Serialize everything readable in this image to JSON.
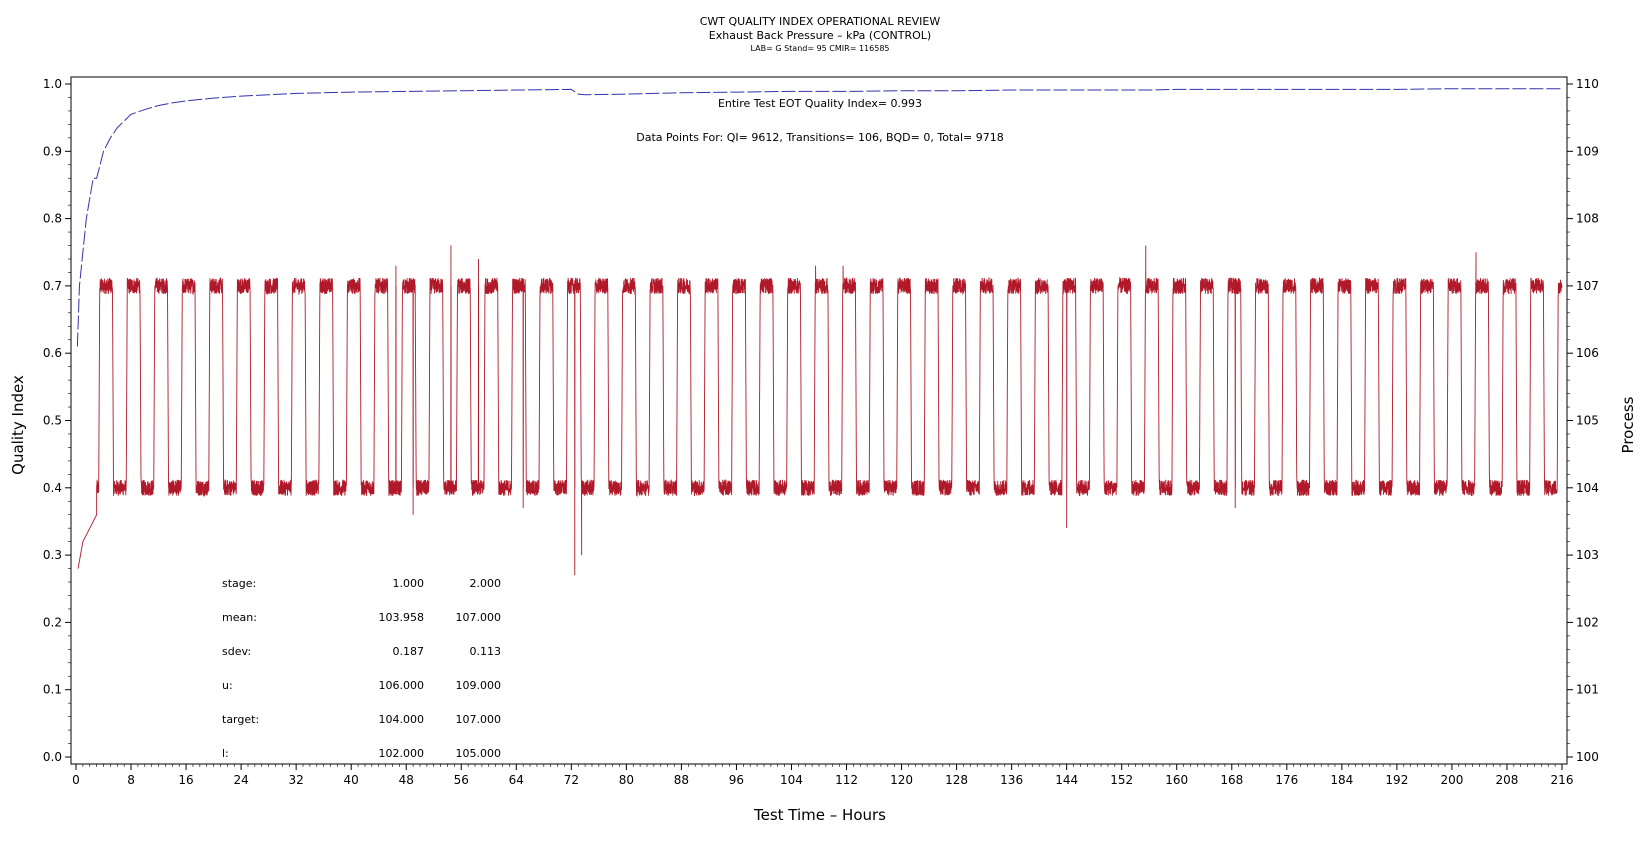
{
  "chart_data": {
    "type": "line",
    "title": "CWT QUALITY INDEX OPERATIONAL REVIEW",
    "subtitle": "Exhaust Back Pressure – kPa (CONTROL)",
    "subtitle2": "LAB= G Stand= 95 CMIR= 116585",
    "xlabel": "Test Time – Hours",
    "ylabel_left": "Quality Index",
    "ylabel_right": "Process",
    "xlim": [
      0,
      216
    ],
    "ylim_left": [
      0.0,
      1.0
    ],
    "ylim_right": [
      100,
      110
    ],
    "x_ticks": [
      "0",
      "8",
      "16",
      "24",
      "32",
      "40",
      "48",
      "56",
      "64",
      "72",
      "80",
      "88",
      "96",
      "104",
      "112",
      "120",
      "128",
      "136",
      "144",
      "152",
      "160",
      "168",
      "176",
      "184",
      "192",
      "200",
      "208",
      "216"
    ],
    "y_left_ticks": [
      "0.0",
      "0.1",
      "0.2",
      "0.3",
      "0.4",
      "0.5",
      "0.6",
      "0.7",
      "0.8",
      "0.9",
      "1.0"
    ],
    "y_right_ticks": [
      "100",
      "101",
      "102",
      "103",
      "104",
      "105",
      "106",
      "107",
      "108",
      "109",
      "110"
    ],
    "annotation_qi": "Entire Test EOT Quality Index=   0.993",
    "annotation_points": "Data Points For: QI=  9612, Transitions=   106, BQD=     0, Total=  9718",
    "stats_table": {
      "rows": [
        {
          "label": "stage:",
          "v1": "1.000",
          "v2": "2.000"
        },
        {
          "label": "mean:",
          "v1": "103.958",
          "v2": "107.000"
        },
        {
          "label": "sdev:",
          "v1": "0.187",
          "v2": "0.113"
        },
        {
          "label": "u:",
          "v1": "106.000",
          "v2": "109.000"
        },
        {
          "label": "target:",
          "v1": "104.000",
          "v2": "107.000"
        },
        {
          "label": "l:",
          "v1": "102.000",
          "v2": "105.000"
        }
      ]
    },
    "series": [
      {
        "role": "quality index",
        "axis": "left",
        "color": "#3333aa",
        "style": "dashed",
        "x": [
          0.2,
          0.5,
          1,
          1.5,
          2,
          2.5,
          3,
          4,
          5,
          6,
          7,
          8,
          10,
          12,
          14,
          16,
          20,
          24,
          28,
          32,
          36,
          40,
          48,
          56,
          64,
          72,
          73,
          74,
          80,
          88,
          96,
          104,
          112,
          120,
          128,
          136,
          144,
          152,
          156,
          160,
          176,
          192,
          200,
          208,
          216
        ],
        "y": [
          0.61,
          0.7,
          0.75,
          0.8,
          0.83,
          0.86,
          0.86,
          0.9,
          0.92,
          0.935,
          0.945,
          0.955,
          0.962,
          0.968,
          0.972,
          0.975,
          0.979,
          0.982,
          0.984,
          0.986,
          0.987,
          0.988,
          0.989,
          0.99,
          0.991,
          0.992,
          0.985,
          0.984,
          0.985,
          0.987,
          0.988,
          0.989,
          0.989,
          0.99,
          0.99,
          0.991,
          0.991,
          0.991,
          0.991,
          0.992,
          0.992,
          0.992,
          0.993,
          0.993,
          0.993
        ]
      },
      {
        "role": "process",
        "axis": "right",
        "color": "#b0192a",
        "style": "solid",
        "low_level": 104.0,
        "high_level": 107.0,
        "cycle_hours": 4.0,
        "first_high_hour": 3.3,
        "warmup": {
          "x": [
            0.3,
            1.0,
            2.0,
            3.0
          ],
          "y": [
            102.8,
            103.2,
            103.4,
            103.6
          ]
        },
        "high_spikes": [
          {
            "x": 54.5,
            "y": 107.6
          },
          {
            "x": 58.5,
            "y": 107.4
          },
          {
            "x": 46.5,
            "y": 107.3
          },
          {
            "x": 155.5,
            "y": 107.6
          },
          {
            "x": 203.5,
            "y": 107.5
          },
          {
            "x": 107.5,
            "y": 107.3
          },
          {
            "x": 111.5,
            "y": 107.3
          }
        ],
        "low_dips": [
          {
            "x": 49.0,
            "y": 103.6
          },
          {
            "x": 72.5,
            "y": 102.7
          },
          {
            "x": 73.5,
            "y": 103.0
          },
          {
            "x": 144.0,
            "y": 103.4
          },
          {
            "x": 65.0,
            "y": 103.7
          },
          {
            "x": 168.5,
            "y": 103.7
          }
        ]
      }
    ]
  }
}
